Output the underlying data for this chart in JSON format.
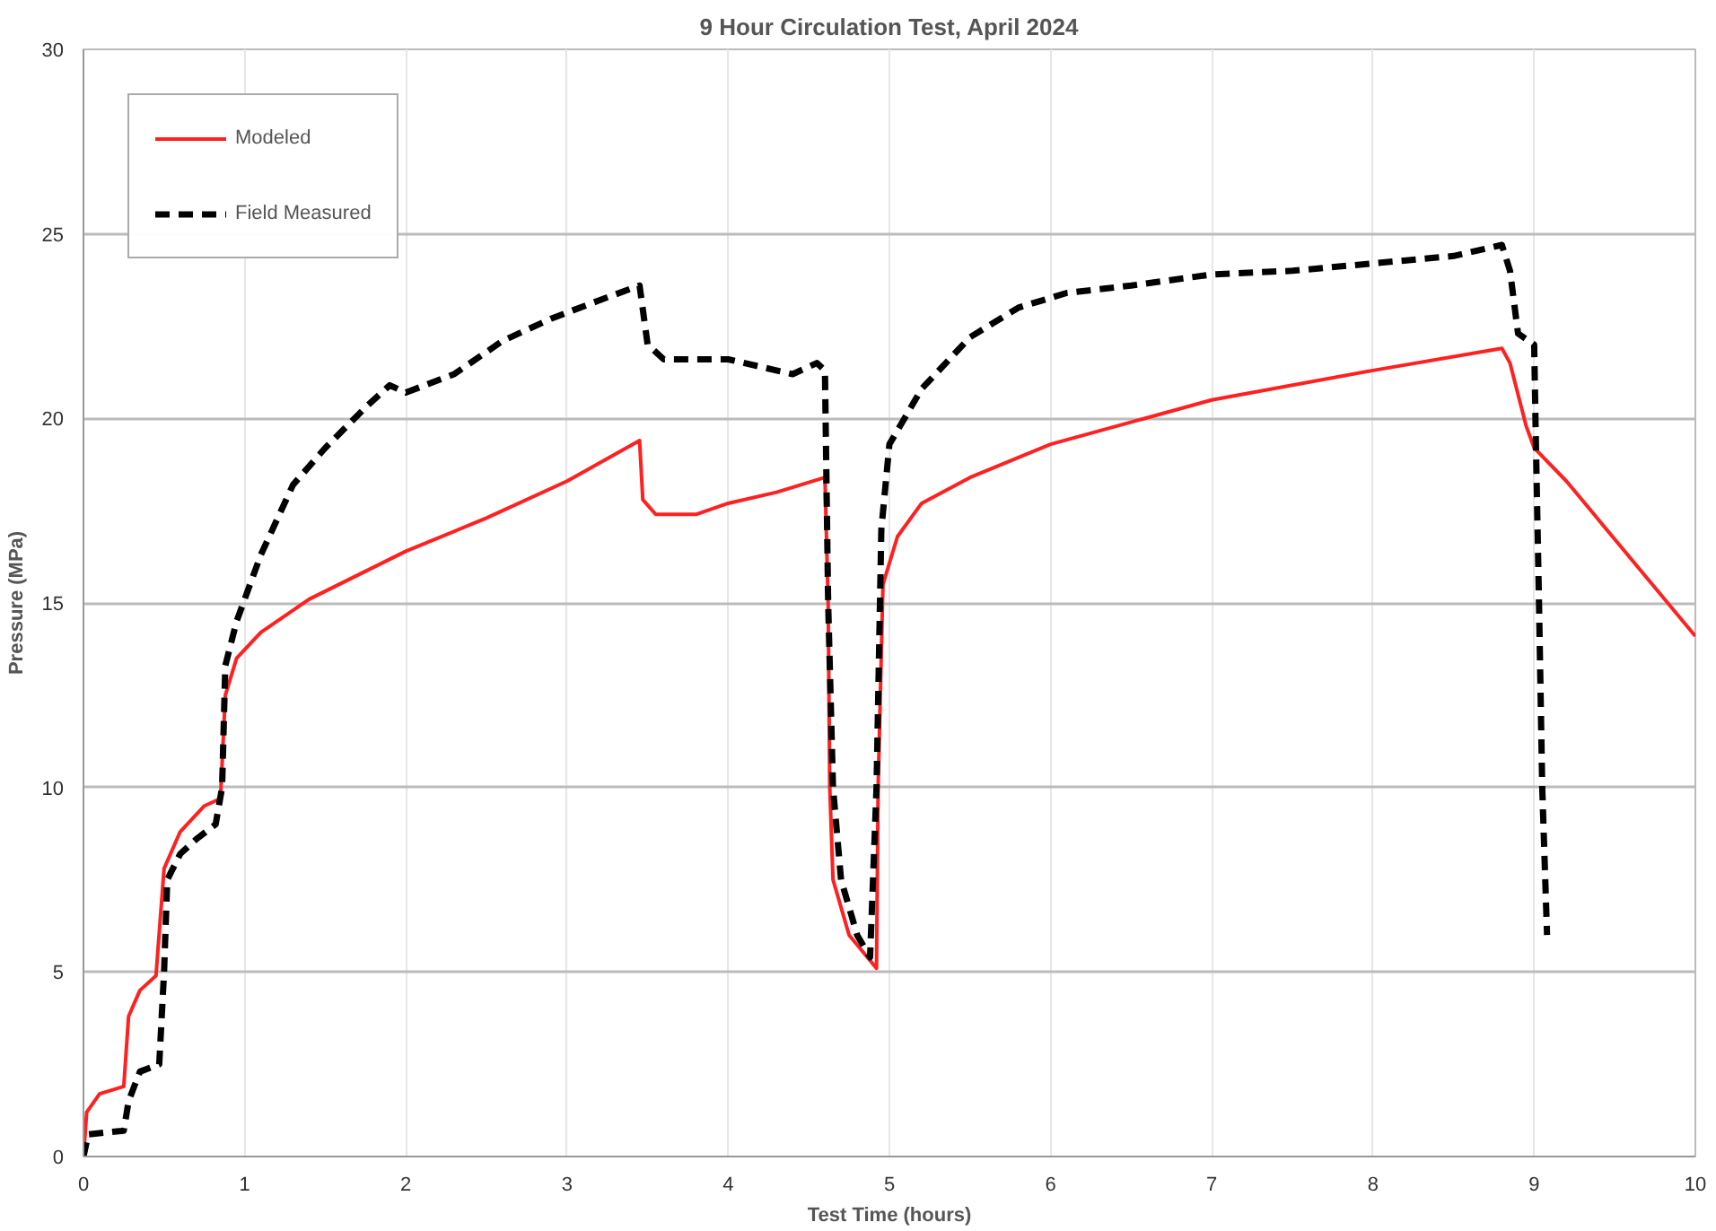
{
  "chart_data": {
    "type": "line",
    "title": "9 Hour Circulation Test, April 2024",
    "xlabel": "Test Time (hours)",
    "ylabel": "Pressure (MPa)",
    "xlim": [
      0,
      10
    ],
    "xticks": [
      0,
      1,
      2,
      3,
      4,
      5,
      6,
      7,
      8,
      9,
      10
    ],
    "ylim": [
      0,
      30
    ],
    "yticks": [
      0,
      5,
      10,
      15,
      20,
      25,
      30
    ],
    "grid": true,
    "legend": "top left",
    "series": [
      {
        "name": "Modeled",
        "color": "#ff2020",
        "line_style": "solid",
        "x": [
          0,
          0.02,
          0.1,
          0.25,
          0.28,
          0.35,
          0.45,
          0.5,
          0.6,
          0.75,
          0.85,
          0.88,
          0.95,
          1.1,
          1.4,
          2,
          2.5,
          3,
          3.45,
          3.47,
          3.55,
          3.8,
          4.0,
          4.3,
          4.6,
          4.62,
          4.63,
          4.65,
          4.75,
          4.92,
          4.93,
          4.96,
          5.05,
          5.2,
          5.5,
          6,
          7,
          8,
          8.8,
          8.85,
          8.95,
          9.0,
          9.2,
          10
        ],
        "values": [
          0,
          1.2,
          1.7,
          1.9,
          3.8,
          4.5,
          4.9,
          7.8,
          8.8,
          9.5,
          9.7,
          12.5,
          13.5,
          14.2,
          15.1,
          16.4,
          17.3,
          18.3,
          19.4,
          17.8,
          17.4,
          17.4,
          17.7,
          18.0,
          18.4,
          15,
          10,
          7.5,
          6.0,
          5.1,
          10,
          15.5,
          16.8,
          17.7,
          18.4,
          19.3,
          20.5,
          21.3,
          21.9,
          21.5,
          19.8,
          19.2,
          18.3,
          14.1
        ]
      },
      {
        "name": "Field Measured",
        "color": "#000000",
        "line_style": "dashed",
        "x": [
          0,
          0.03,
          0.25,
          0.28,
          0.35,
          0.47,
          0.5,
          0.52,
          0.6,
          0.7,
          0.82,
          0.86,
          0.88,
          0.95,
          1.1,
          1.3,
          1.5,
          1.75,
          1.9,
          2.0,
          2.3,
          2.6,
          2.9,
          3.2,
          3.45,
          3.5,
          3.6,
          4.0,
          4.2,
          4.4,
          4.55,
          4.6,
          4.62,
          4.65,
          4.7,
          4.8,
          4.88,
          4.92,
          4.95,
          5.0,
          5.2,
          5.5,
          5.8,
          6.1,
          6.5,
          7,
          7.5,
          8,
          8.5,
          8.8,
          8.85,
          8.9,
          9.0,
          9.01,
          9.03,
          9.05,
          9.08
        ],
        "values": [
          0,
          0.6,
          0.7,
          1.5,
          2.3,
          2.5,
          5,
          7.5,
          8.2,
          8.6,
          9.0,
          10,
          13.3,
          14.5,
          16.3,
          18.2,
          19.2,
          20.3,
          20.9,
          20.7,
          21.2,
          22.1,
          22.7,
          23.2,
          23.6,
          22.0,
          21.6,
          21.6,
          21.4,
          21.2,
          21.5,
          21.3,
          15,
          10,
          7.5,
          6.0,
          5.4,
          10,
          17,
          19.3,
          20.8,
          22.2,
          23.0,
          23.4,
          23.6,
          23.9,
          24.0,
          24.2,
          24.4,
          24.7,
          24.0,
          22.3,
          22.0,
          19.5,
          15,
          10,
          6.0
        ]
      }
    ]
  }
}
